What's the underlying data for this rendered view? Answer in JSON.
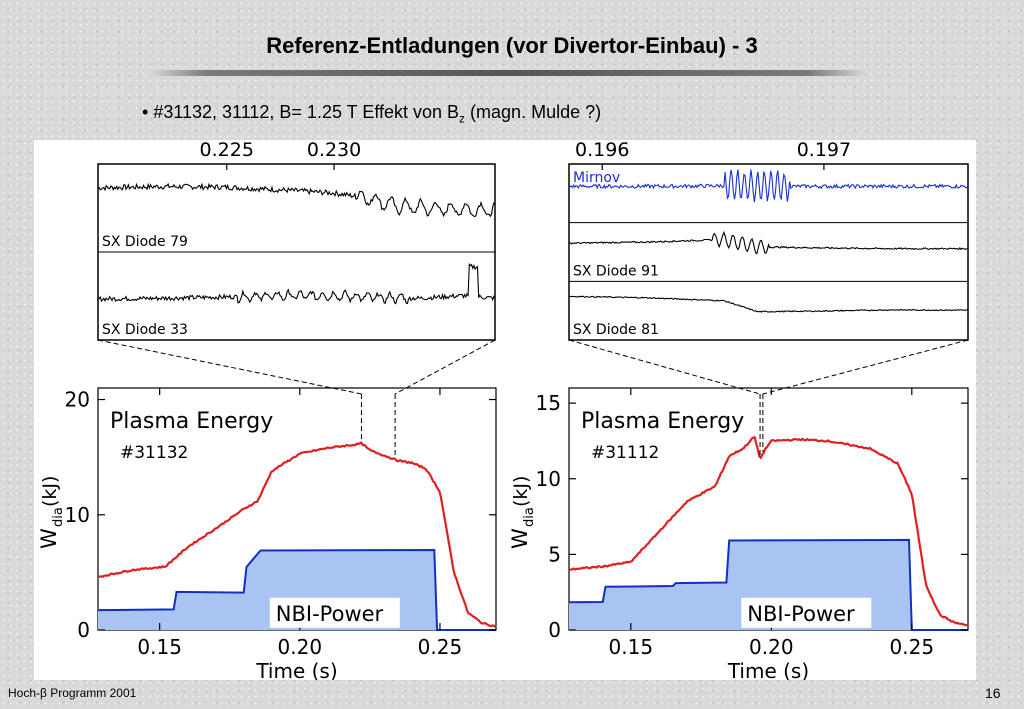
{
  "slide": {
    "title": "Referenz-Entladungen (vor Divertor-Einbau)  - 3",
    "bullet_prefix": "• #31132, 31112, B= 1.25 T Effekt von B",
    "bullet_sub": "z",
    "bullet_suffix": " (magn. Mulde ?)",
    "footer_left": "Hoch-β Programm 2001",
    "page_number": "16"
  },
  "chart_data": [
    {
      "type": "line",
      "title": "",
      "xlabel": "",
      "ylabel": "",
      "xlim": [
        0.219,
        0.2375
      ],
      "x_ticks": [
        0.225,
        0.23
      ],
      "x_tick_labels": [
        "0.225",
        "0.230"
      ],
      "series": [
        {
          "name": "SX Diode 79",
          "color": "#000000",
          "x": [
            0.219,
            0.222,
            0.225,
            0.228,
            0.23,
            0.2315,
            0.233,
            0.235,
            0.2375
          ],
          "y": [
            0.7,
            0.72,
            0.71,
            0.66,
            0.62,
            0.55,
            0.42,
            0.38,
            0.36
          ]
        },
        {
          "name": "SX Diode 33",
          "color": "#000000",
          "x": [
            0.219,
            0.222,
            0.225,
            0.228,
            0.23,
            0.232,
            0.234,
            0.236,
            0.2375
          ],
          "y": [
            0.35,
            0.36,
            0.38,
            0.4,
            0.4,
            0.37,
            0.36,
            0.4,
            0.36
          ]
        }
      ]
    },
    {
      "type": "line",
      "title": "",
      "xlabel": "",
      "ylabel": "",
      "xlim": [
        0.19585,
        0.19765
      ],
      "x_ticks": [
        0.196,
        0.197
      ],
      "x_tick_labels": [
        "0.196",
        "0.197"
      ],
      "series": [
        {
          "name": "Mirnov",
          "color": "#1a2fd0",
          "x": [
            0.19585,
            0.1963,
            0.1966,
            0.1968,
            0.197,
            0.1973,
            0.19765
          ],
          "y": [
            0.5,
            0.5,
            0.52,
            0.5,
            0.5,
            0.5,
            0.5
          ]
        },
        {
          "name": "SX Diode 91",
          "color": "#000000",
          "x": [
            0.19585,
            0.1962,
            0.19655,
            0.1967,
            0.197,
            0.1973,
            0.19765
          ],
          "y": [
            0.55,
            0.58,
            0.65,
            0.45,
            0.42,
            0.4,
            0.4
          ]
        },
        {
          "name": "SX Diode 81",
          "color": "#000000",
          "x": [
            0.19585,
            0.1962,
            0.19655,
            0.1967,
            0.197,
            0.1973,
            0.19765
          ],
          "y": [
            0.7,
            0.66,
            0.58,
            0.28,
            0.3,
            0.33,
            0.32
          ]
        }
      ]
    },
    {
      "type": "area",
      "title": "Plasma Energy",
      "annotation": "#31132",
      "box_label": "NBI-Power",
      "xlabel": "Time (s)",
      "ylabel": "W",
      "ylabel_sub": "dia",
      "ylabel_suffix": " (kJ)",
      "xlim": [
        0.128,
        0.27
      ],
      "ylim": [
        0,
        21
      ],
      "x_ticks": [
        0.15,
        0.2,
        0.25
      ],
      "x_tick_labels": [
        "0.15",
        "0.20",
        "0.25"
      ],
      "y_ticks": [
        0,
        10,
        20
      ],
      "y_tick_labels": [
        "0",
        "10",
        "20"
      ],
      "markers": [
        0.222,
        0.234
      ],
      "series": [
        {
          "name": "Plasma Energy",
          "color": "#e02020",
          "x": [
            0.128,
            0.14,
            0.152,
            0.16,
            0.17,
            0.18,
            0.185,
            0.19,
            0.2,
            0.21,
            0.22,
            0.222,
            0.225,
            0.235,
            0.24,
            0.245,
            0.25,
            0.255,
            0.26,
            0.265,
            0.27
          ],
          "y": [
            4.6,
            5.2,
            5.5,
            7.2,
            8.8,
            10.5,
            11.2,
            13.8,
            15.3,
            15.8,
            16.1,
            16.2,
            15.6,
            14.7,
            14.5,
            14.0,
            12.0,
            5.0,
            1.5,
            0.6,
            0.3
          ]
        },
        {
          "name": "NBI-Power",
          "color": "#1030c0",
          "fill": "#a9c4f2",
          "x": [
            0.128,
            0.155,
            0.156,
            0.18,
            0.181,
            0.185,
            0.186,
            0.248,
            0.249,
            0.27
          ],
          "y": [
            1.8,
            1.8,
            3.3,
            3.3,
            5.4,
            6.7,
            6.9,
            6.9,
            0.0,
            0.0
          ]
        }
      ]
    },
    {
      "type": "area",
      "title": "Plasma Energy",
      "annotation": "#31112",
      "box_label": "NBI-Power",
      "xlabel": "Time (s)",
      "ylabel": "W",
      "ylabel_sub": "dia",
      "ylabel_suffix": " (kJ)",
      "xlim": [
        0.128,
        0.27
      ],
      "ylim": [
        0,
        16
      ],
      "x_ticks": [
        0.15,
        0.2,
        0.25
      ],
      "x_tick_labels": [
        "0.15",
        "0.20",
        "0.25"
      ],
      "y_ticks": [
        0,
        5,
        10,
        15
      ],
      "y_tick_labels": [
        "0",
        "5",
        "10",
        "15"
      ],
      "markers": [
        0.196,
        0.197
      ],
      "series": [
        {
          "name": "Plasma Energy",
          "color": "#e02020",
          "x": [
            0.128,
            0.14,
            0.15,
            0.16,
            0.17,
            0.18,
            0.185,
            0.19,
            0.194,
            0.196,
            0.198,
            0.2,
            0.21,
            0.22,
            0.235,
            0.245,
            0.25,
            0.255,
            0.26,
            0.265,
            0.27
          ],
          "y": [
            4.0,
            4.2,
            4.5,
            6.5,
            8.5,
            9.5,
            11.5,
            12.0,
            12.8,
            11.3,
            12.0,
            12.5,
            12.6,
            12.5,
            12.0,
            11.0,
            9.0,
            3.0,
            1.0,
            0.5,
            0.3
          ]
        },
        {
          "name": "NBI-Power",
          "color": "#1030c0",
          "fill": "#a9c4f2",
          "x": [
            0.128,
            0.14,
            0.141,
            0.165,
            0.166,
            0.184,
            0.185,
            0.249,
            0.25,
            0.27
          ],
          "y": [
            1.8,
            1.8,
            2.9,
            2.9,
            3.1,
            3.1,
            5.9,
            5.9,
            0.0,
            0.0
          ]
        }
      ]
    }
  ]
}
